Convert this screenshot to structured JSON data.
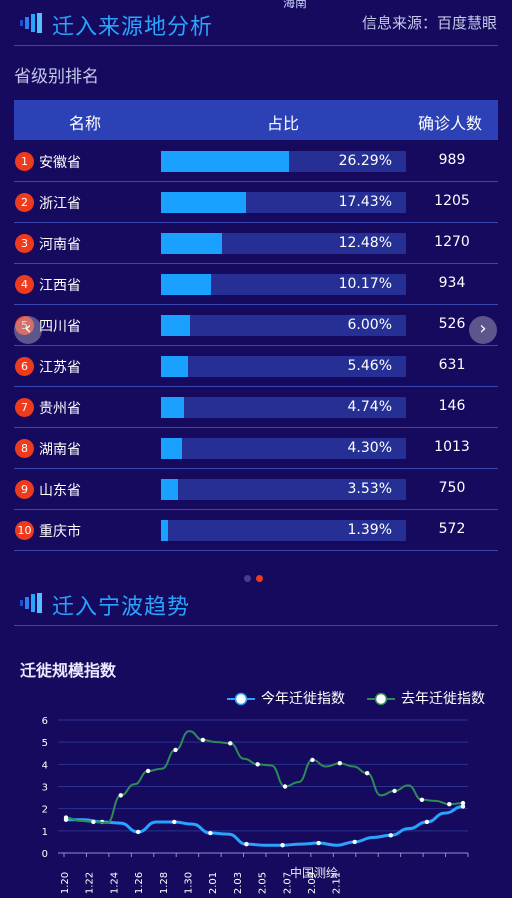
{
  "top_clip": "海南",
  "origin_section": {
    "title": "迁入来源地分析",
    "source": "信息来源：百度慧眼",
    "subheading": "省级别排名",
    "columns": [
      "名称",
      "占比",
      "确诊人数"
    ],
    "rows": [
      {
        "rank": "1",
        "name": "安徽省",
        "share": 26.29,
        "share_label": "26.29%",
        "count": "989"
      },
      {
        "rank": "2",
        "name": "浙江省",
        "share": 17.43,
        "share_label": "17.43%",
        "count": "1205"
      },
      {
        "rank": "3",
        "name": "河南省",
        "share": 12.48,
        "share_label": "12.48%",
        "count": "1270"
      },
      {
        "rank": "4",
        "name": "江西省",
        "share": 10.17,
        "share_label": "10.17%",
        "count": "934"
      },
      {
        "rank": "5",
        "name": "四川省",
        "share": 6.0,
        "share_label": "6.00%",
        "count": "526"
      },
      {
        "rank": "6",
        "name": "江苏省",
        "share": 5.46,
        "share_label": "5.46%",
        "count": "631"
      },
      {
        "rank": "7",
        "name": "贵州省",
        "share": 4.74,
        "share_label": "4.74%",
        "count": "146"
      },
      {
        "rank": "8",
        "name": "湖南省",
        "share": 4.3,
        "share_label": "4.30%",
        "count": "1013"
      },
      {
        "rank": "9",
        "name": "山东省",
        "share": 3.53,
        "share_label": "3.53%",
        "count": "750"
      },
      {
        "rank": "10",
        "name": "重庆市",
        "share": 1.39,
        "share_label": "1.39%",
        "count": "572"
      }
    ],
    "prev_arrow": "‹",
    "next_arrow": "›"
  },
  "trend_section": {
    "title": "迁入宁波趋势",
    "chart_title": "迁徙规模指数",
    "legend_this_year": "今年迁徙指数",
    "legend_last_year": "去年迁徙指数"
  },
  "watermark": "中国测绘",
  "colors": {
    "accent": "#2aa3ff",
    "bar": "#1aa1ff",
    "rank_badge": "#ee3a1d",
    "this_year_line": "#2aa3ff",
    "last_year_line": "#2e8b57"
  },
  "chart_data": {
    "type": "line",
    "ylim": [
      0,
      6
    ],
    "yticks": [
      "0",
      "1",
      "2",
      "3",
      "4",
      "5",
      "6"
    ],
    "x_tick_labels": [
      "1.20",
      "1.22",
      "1.24",
      "1.26",
      "1.28",
      "1.30",
      "2.01",
      "2.03",
      "2.05",
      "2.07",
      "2.09",
      "2.11"
    ],
    "series": [
      {
        "name": "今年迁徙指数",
        "values": [
          1.5,
          1.5,
          1.4,
          1.35,
          0.95,
          1.4,
          1.4,
          1.3,
          0.9,
          0.85,
          0.4,
          0.35,
          0.35,
          0.4,
          0.45,
          0.35,
          0.5,
          0.7,
          0.8,
          1.1,
          1.4,
          1.8,
          2.1
        ]
      },
      {
        "name": "去年迁徙指数",
        "values": [
          1.6,
          1.45,
          1.4,
          1.35,
          2.6,
          3.1,
          3.7,
          3.8,
          4.65,
          5.5,
          5.1,
          5.0,
          4.95,
          4.25,
          4.0,
          3.95,
          3.0,
          3.2,
          4.2,
          3.9,
          4.05,
          3.9,
          3.6,
          2.6,
          2.8,
          3.05,
          2.4,
          2.35,
          2.2,
          2.25
        ]
      }
    ]
  }
}
